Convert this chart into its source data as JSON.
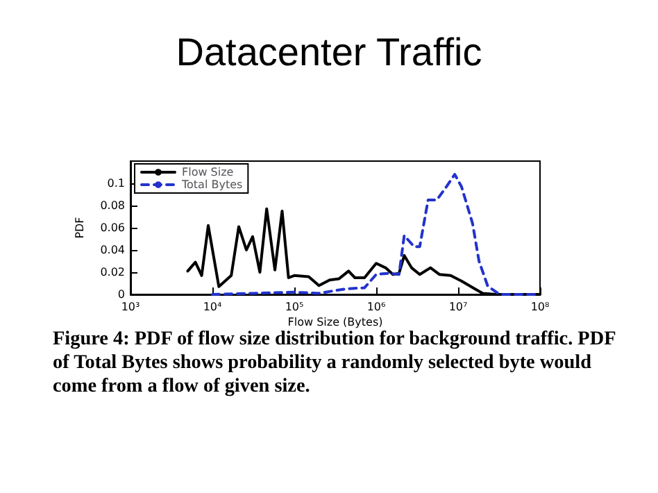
{
  "chart_data": {
    "type": "line",
    "title": "Datacenter Traffic",
    "xlabel": "Flow Size (Bytes)",
    "ylabel": "PDF",
    "annotations": [
      "Figure 4: PDF of flow size distribution for background traffic. PDF of Total Bytes shows probability a randomly selected byte would come from a flow of given size."
    ],
    "log": "x",
    "grid": false,
    "legend": "top left",
    "marker": "none",
    "xlim": [
      1000,
      100000000
    ],
    "xticks": [
      {
        "value": 1000,
        "label": "10³"
      },
      {
        "value": 10000,
        "label": "10⁴"
      },
      {
        "value": 100000,
        "label": "10⁵"
      },
      {
        "value": 1000000,
        "label": "10⁶"
      },
      {
        "value": 10000000,
        "label": "10⁷"
      },
      {
        "value": 100000000,
        "label": "10⁸"
      }
    ],
    "ylim": [
      0,
      0.12
    ],
    "yticks": [
      0,
      0.02,
      0.04,
      0.06,
      0.08,
      0.1
    ],
    "series": [
      {
        "name": "Flow Size",
        "color": "#000000",
        "line_style": "solid",
        "x": [
          5000,
          6200,
          7400,
          8900,
          12000,
          17000,
          21000,
          26000,
          31000,
          38000,
          46000,
          58000,
          71000,
          85000,
          100000,
          150000,
          200000,
          270000,
          350000,
          460000,
          550000,
          720000,
          1000000,
          1300000,
          1600000,
          1900000,
          2200000,
          2700000,
          3400000,
          4600000,
          5900000,
          8100000,
          11000000,
          16000000,
          20000000,
          29000000,
          100000000
        ],
        "values": [
          0.021,
          0.029,
          0.017,
          0.062,
          0.007,
          0.017,
          0.061,
          0.04,
          0.052,
          0.02,
          0.077,
          0.022,
          0.075,
          0.015,
          0.017,
          0.016,
          0.008,
          0.013,
          0.014,
          0.021,
          0.015,
          0.015,
          0.028,
          0.024,
          0.018,
          0.019,
          0.035,
          0.024,
          0.018,
          0.024,
          0.018,
          0.017,
          0.012,
          0.005,
          0.001,
          0,
          0
        ]
      },
      {
        "name": "Total Bytes",
        "color": "#2233cc",
        "line_style": "dashed",
        "x": [
          10000,
          32000,
          100000,
          200000,
          290000,
          430000,
          720000,
          1000000,
          1400000,
          1900000,
          2200000,
          2900000,
          3400000,
          4300000,
          5500000,
          7200000,
          9100000,
          11000000,
          15000000,
          18000000,
          23000000,
          32000000,
          100000000
        ],
        "values": [
          0,
          0.001,
          0.002,
          0.001,
          0.003,
          0.005,
          0.006,
          0.018,
          0.019,
          0.018,
          0.053,
          0.043,
          0.043,
          0.085,
          0.085,
          0.097,
          0.108,
          0.097,
          0.064,
          0.03,
          0.0075,
          0,
          0
        ]
      }
    ]
  }
}
